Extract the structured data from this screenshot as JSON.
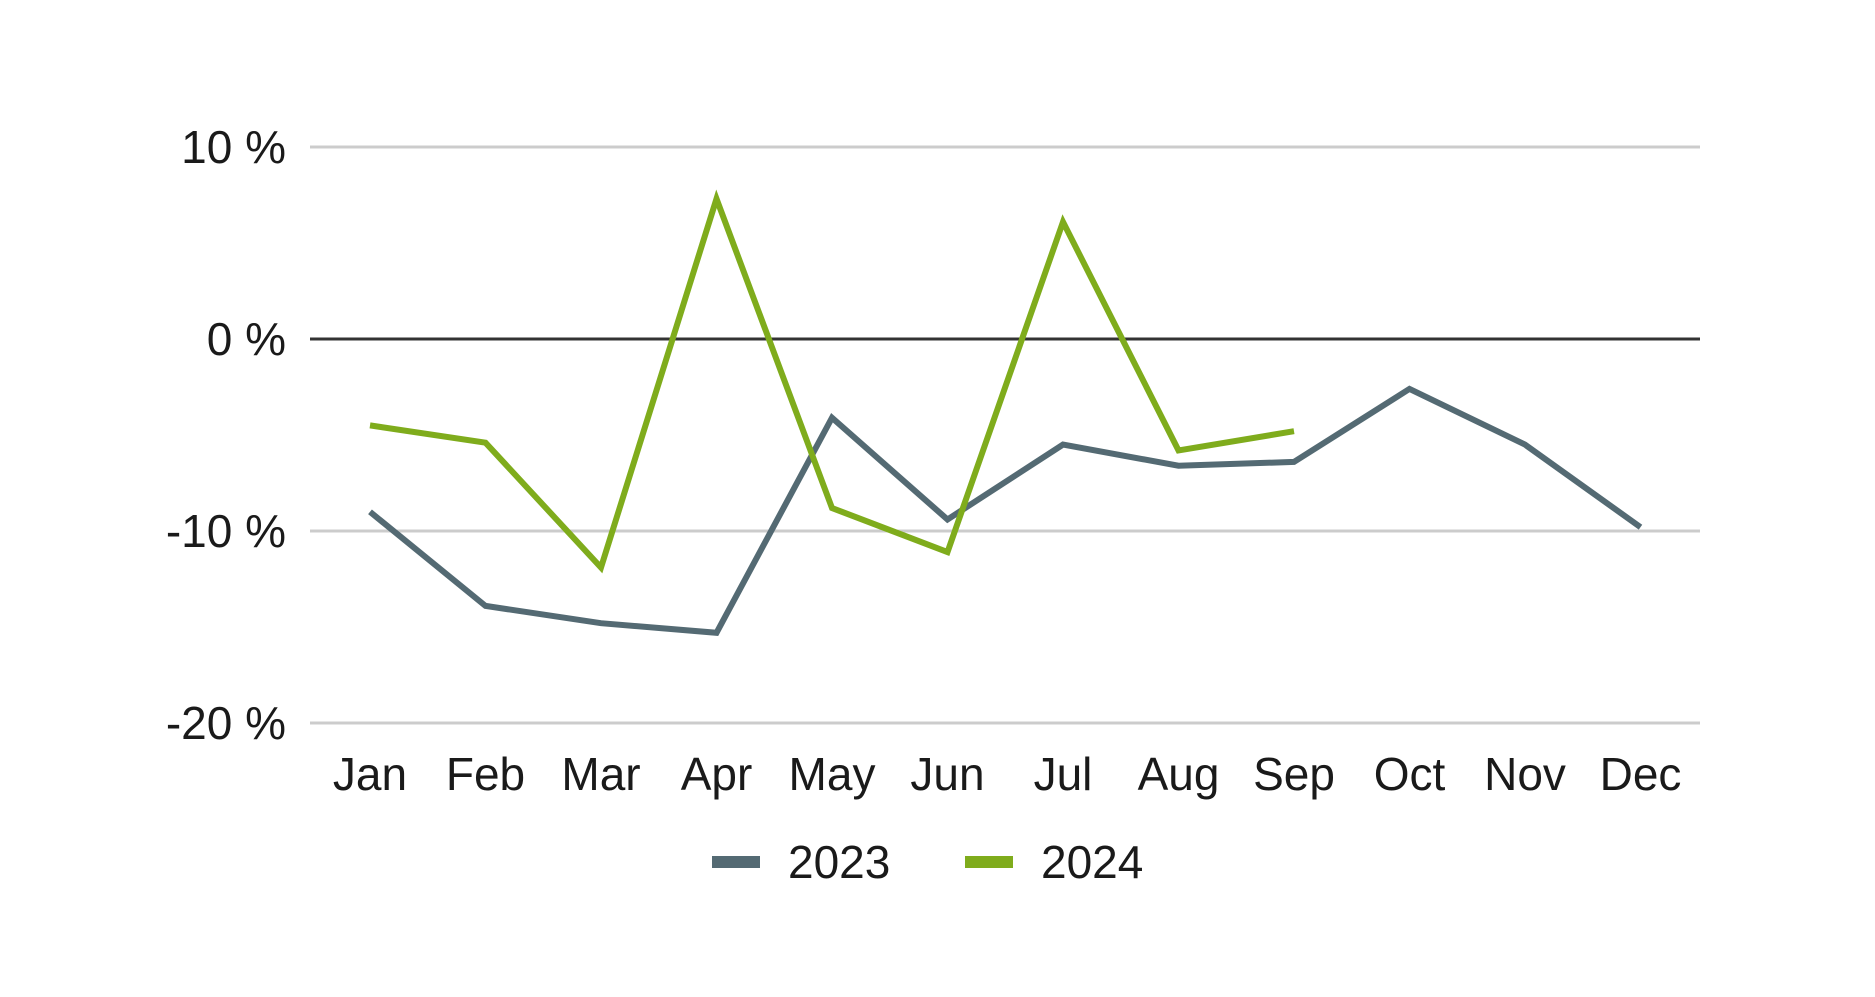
{
  "chart_data": {
    "type": "line",
    "title": "",
    "xlabel": "",
    "ylabel": "",
    "categories": [
      "Jan",
      "Feb",
      "Mar",
      "Apr",
      "May",
      "Jun",
      "Jul",
      "Aug",
      "Sep",
      "Oct",
      "Nov",
      "Dec"
    ],
    "ylim": [
      -20,
      10
    ],
    "yticks": [
      10,
      0,
      -10,
      -20
    ],
    "ytick_labels": [
      "10 %",
      "0 %",
      "-10 %",
      "-20 %"
    ],
    "grid": true,
    "zero_line": true,
    "legend_position": "bottom",
    "series": [
      {
        "name": "2023",
        "color": "#546a73",
        "values": [
          -9.0,
          -13.9,
          -14.8,
          -15.3,
          -4.1,
          -9.4,
          -5.5,
          -6.6,
          -6.4,
          -2.6,
          -5.5,
          -9.8
        ]
      },
      {
        "name": "2024",
        "color": "#7fac1c",
        "values": [
          -4.5,
          -5.4,
          -11.9,
          7.3,
          -8.8,
          -11.1,
          6.1,
          -5.8,
          -4.8,
          null,
          null,
          null
        ]
      }
    ],
    "colors": {
      "grid": "#cccccc",
      "zero_line": "#333333",
      "text": "#1a1a1a"
    }
  }
}
